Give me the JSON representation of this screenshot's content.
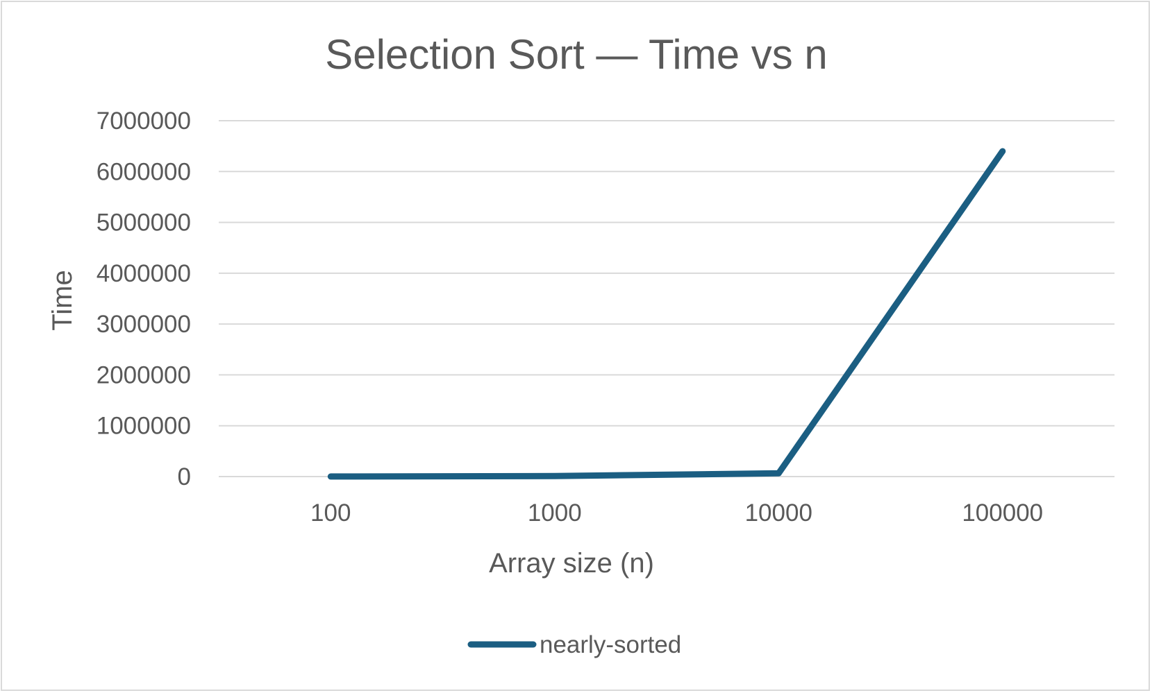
{
  "chart_data": {
    "type": "line",
    "title": "Selection Sort — Time vs n",
    "xlabel": "Array size (n)",
    "ylabel": "Time",
    "categories": [
      "100",
      "1000",
      "10000",
      "100000"
    ],
    "series": [
      {
        "name": "nearly-sorted",
        "values": [
          1000,
          10000,
          64000,
          6400000
        ],
        "color": "#1b5e82"
      }
    ],
    "ylim": [
      0,
      7000000
    ],
    "yticks": [
      "0",
      "1000000",
      "2000000",
      "3000000",
      "4000000",
      "5000000",
      "6000000",
      "7000000"
    ],
    "grid": true,
    "legend_position": "bottom"
  }
}
